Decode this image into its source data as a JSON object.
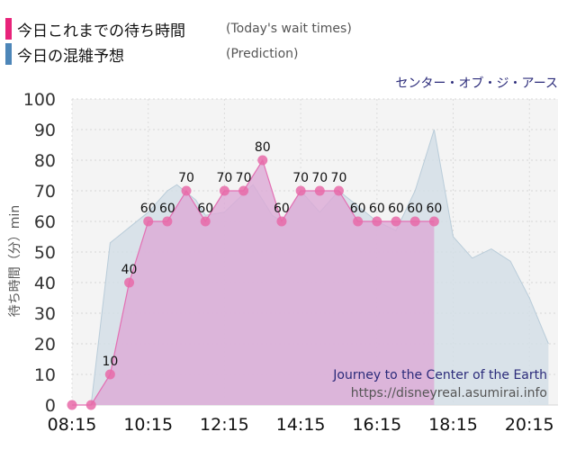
{
  "legend": [
    {
      "label": "今日これまでの待ち時間",
      "note": "(Today's wait times)",
      "color": "#e8237a"
    },
    {
      "label": "今日の混雑予想",
      "note": "(Prediction)",
      "color": "#4d86b8"
    }
  ],
  "attraction_jp": "センター・オブ・ジ・アース",
  "watermark": {
    "title": "Journey to the Center of the Earth",
    "url": "https://disneyreal.asumirai.info"
  },
  "colors": {
    "today_fill": "#dcaad6",
    "today_line": "#e36fb3",
    "today_marker": "#e86aa8",
    "prediction_fill": "#d3dee6",
    "prediction_line": "#b9ccd9",
    "plot_bg": "#f4f4f4"
  },
  "chart_data": {
    "type": "area",
    "ylabel": "待ち時間（分）min",
    "ylim": [
      0,
      100
    ],
    "yticks": [
      0,
      10,
      20,
      30,
      40,
      50,
      60,
      70,
      80,
      90,
      100
    ],
    "xlim": [
      "08:15",
      "21:00"
    ],
    "xticks": [
      "08:15",
      "10:15",
      "12:15",
      "14:15",
      "16:15",
      "18:15",
      "20:15"
    ],
    "series": [
      {
        "key": "today",
        "points": [
          {
            "t": "08:15",
            "v": 0
          },
          {
            "t": "08:45",
            "v": 0
          },
          {
            "t": "09:15",
            "v": 10
          },
          {
            "t": "09:45",
            "v": 40
          },
          {
            "t": "10:15",
            "v": 60
          },
          {
            "t": "10:45",
            "v": 60
          },
          {
            "t": "11:15",
            "v": 70
          },
          {
            "t": "11:45",
            "v": 60
          },
          {
            "t": "12:15",
            "v": 70
          },
          {
            "t": "12:45",
            "v": 70
          },
          {
            "t": "13:15",
            "v": 80
          },
          {
            "t": "13:45",
            "v": 60
          },
          {
            "t": "14:15",
            "v": 70
          },
          {
            "t": "14:45",
            "v": 70
          },
          {
            "t": "15:15",
            "v": 70
          },
          {
            "t": "15:45",
            "v": 60
          },
          {
            "t": "16:15",
            "v": 60
          },
          {
            "t": "16:45",
            "v": 60
          },
          {
            "t": "17:15",
            "v": 60
          },
          {
            "t": "17:45",
            "v": 60
          }
        ]
      },
      {
        "key": "prediction",
        "points": [
          {
            "t": "08:15",
            "v": 0
          },
          {
            "t": "08:45",
            "v": 0
          },
          {
            "t": "09:15",
            "v": 53
          },
          {
            "t": "09:45",
            "v": 58
          },
          {
            "t": "10:15",
            "v": 63
          },
          {
            "t": "10:45",
            "v": 70
          },
          {
            "t": "11:00",
            "v": 72
          },
          {
            "t": "11:30",
            "v": 67
          },
          {
            "t": "11:45",
            "v": 62
          },
          {
            "t": "12:15",
            "v": 63
          },
          {
            "t": "12:45",
            "v": 69
          },
          {
            "t": "13:00",
            "v": 72
          },
          {
            "t": "13:30",
            "v": 62
          },
          {
            "t": "13:45",
            "v": 60
          },
          {
            "t": "14:15",
            "v": 70
          },
          {
            "t": "14:45",
            "v": 63
          },
          {
            "t": "15:15",
            "v": 70
          },
          {
            "t": "15:45",
            "v": 65
          },
          {
            "t": "16:15",
            "v": 60
          },
          {
            "t": "16:45",
            "v": 57
          },
          {
            "t": "17:15",
            "v": 70
          },
          {
            "t": "17:45",
            "v": 90
          },
          {
            "t": "18:15",
            "v": 55
          },
          {
            "t": "18:45",
            "v": 48
          },
          {
            "t": "19:15",
            "v": 51
          },
          {
            "t": "19:45",
            "v": 47
          },
          {
            "t": "20:15",
            "v": 35
          },
          {
            "t": "20:45",
            "v": 20
          }
        ]
      }
    ]
  }
}
